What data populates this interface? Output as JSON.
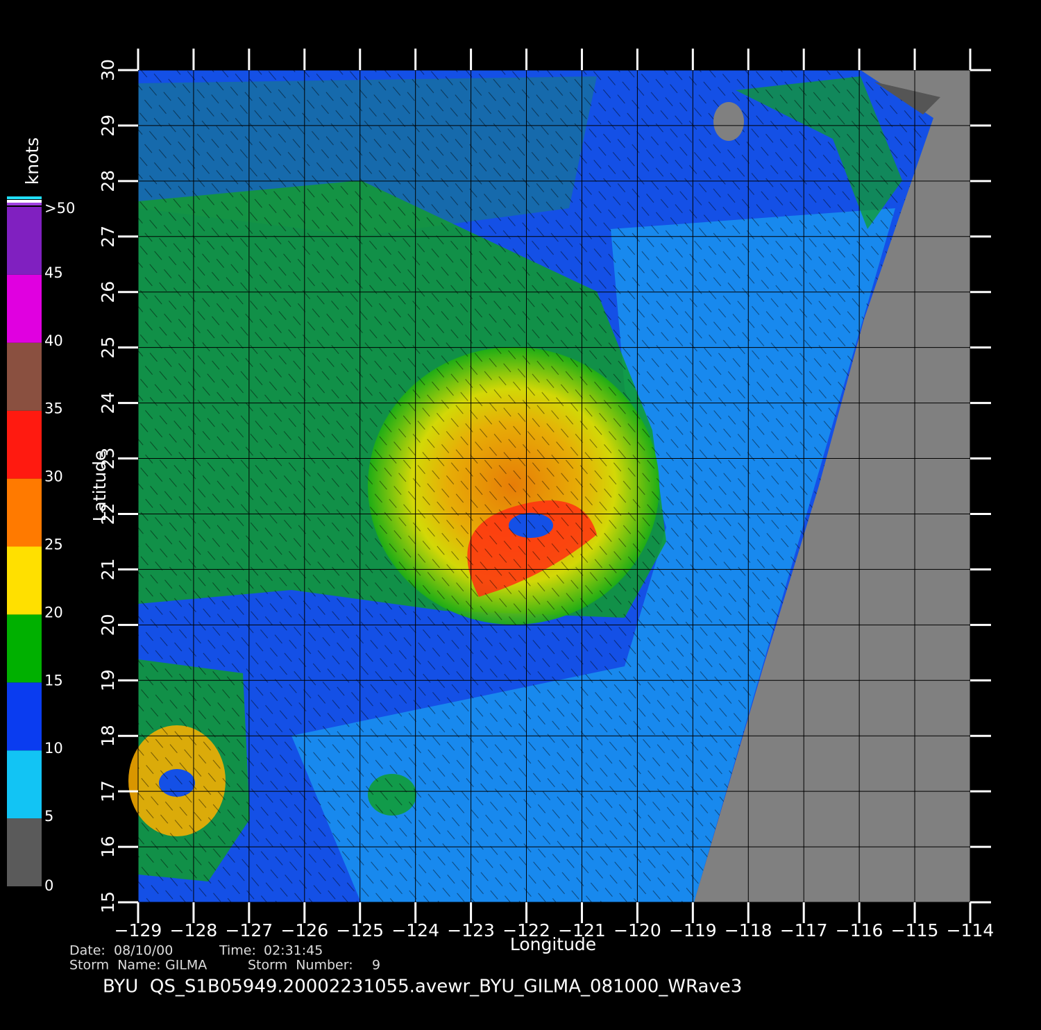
{
  "map": {
    "xlabel": "Longitude",
    "ylabel": "Latitude",
    "xlim": [
      -129,
      -114
    ],
    "ylim": [
      15,
      30
    ],
    "xticks": [
      {
        "value": -129,
        "label": "−129"
      },
      {
        "value": -128,
        "label": "−128"
      },
      {
        "value": -127,
        "label": "−127"
      },
      {
        "value": -126,
        "label": "−126"
      },
      {
        "value": -125,
        "label": "−125"
      },
      {
        "value": -124,
        "label": "−124"
      },
      {
        "value": -123,
        "label": "−123"
      },
      {
        "value": -122,
        "label": "−122"
      },
      {
        "value": -121,
        "label": "−121"
      },
      {
        "value": -120,
        "label": "−120"
      },
      {
        "value": -119,
        "label": "−119"
      },
      {
        "value": -118,
        "label": "−118"
      },
      {
        "value": -117,
        "label": "−117"
      },
      {
        "value": -116,
        "label": "−116"
      },
      {
        "value": -115,
        "label": "−115"
      },
      {
        "value": -114,
        "label": "−114"
      }
    ],
    "yticks": [
      15,
      16,
      17,
      18,
      19,
      20,
      21,
      22,
      23,
      24,
      25,
      26,
      27,
      28,
      29,
      30
    ],
    "grid": true
  },
  "colorbar": {
    "title": "knots",
    "lim": [
      0,
      50
    ],
    "ticks": [
      0,
      5,
      10,
      15,
      20,
      25,
      30,
      35,
      40,
      45,
      {
        "value": 50,
        "label": ">50"
      }
    ],
    "colors": [
      "#5a5a5a",
      "#12c4f4",
      "#0a3cf0",
      "#00b000",
      "#ffe000",
      "#ff7a00",
      "#ff1a10",
      "#8a5040",
      "#e000e0",
      "#8020c0"
    ]
  },
  "info": {
    "date_label": "Date:",
    "date": "08/10/00",
    "time_label": "Time:",
    "time": "02:31:45",
    "storm_name_label": "Storm  Name:",
    "storm_name": "GILMA",
    "storm_number_label": "Storm  Number:",
    "storm_number": 9
  },
  "footer": "BYU  QS_S1B05949.20002231055.avewr_BYU_GILMA_081000_WRave3"
}
